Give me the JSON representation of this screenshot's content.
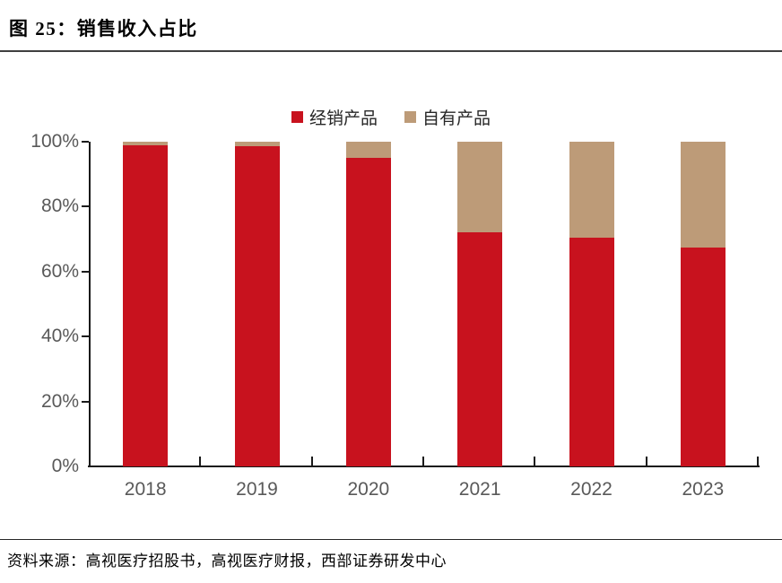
{
  "title": "图 25：销售收入占比",
  "source": "资料来源：高视医疗招股书，高视医疗财报，西部证券研发中心",
  "colors": {
    "distributed_red": "#C8121E",
    "own_tan": "#BD9B78",
    "axis": "#1a1a1a",
    "tick_label_gray": "#595959",
    "divider": "#3f3f3f"
  },
  "chart_data": {
    "type": "bar",
    "stacked": true,
    "title": "销售收入占比",
    "categories": [
      "2018",
      "2019",
      "2020",
      "2021",
      "2022",
      "2023"
    ],
    "series": [
      {
        "name": "经销产品",
        "color": "#C8121E",
        "values": [
          99,
          98.5,
          95,
          72,
          70.5,
          67.5
        ]
      },
      {
        "name": "自有产品",
        "color": "#BD9B78",
        "values": [
          1,
          1.5,
          5,
          28,
          29.5,
          32.5
        ]
      }
    ],
    "xlabel": "",
    "ylabel": "",
    "ylim": [
      0,
      100
    ],
    "yticks": [
      0,
      20,
      40,
      60,
      80,
      100
    ],
    "ytick_labels": [
      "0%",
      "20%",
      "40%",
      "60%",
      "80%",
      "100%"
    ],
    "legend_position": "top-center",
    "grid": false
  }
}
